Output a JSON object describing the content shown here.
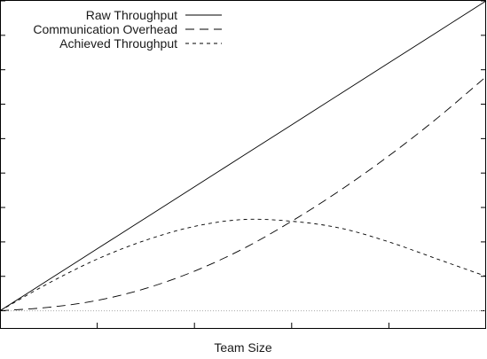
{
  "chart_data": {
    "type": "line",
    "title": "",
    "xlabel": "Team Size",
    "ylabel": "",
    "xlim": [
      0,
      1
    ],
    "ylim": [
      -0.05,
      0.9
    ],
    "grid": false,
    "legend_position": "top-left",
    "series": [
      {
        "name": "Raw Throughput",
        "dash": "solid",
        "x": [
          0,
          0.1,
          0.2,
          0.3,
          0.4,
          0.5,
          0.6,
          0.7,
          0.8,
          0.9,
          1.0
        ],
        "y": [
          0,
          0.09,
          0.18,
          0.27,
          0.36,
          0.45,
          0.54,
          0.63,
          0.72,
          0.81,
          0.9
        ]
      },
      {
        "name": "Communication Overhead",
        "dash": "long-dash",
        "x": [
          0,
          0.1,
          0.2,
          0.3,
          0.4,
          0.5,
          0.6,
          0.7,
          0.8,
          0.9,
          1.0
        ],
        "y": [
          0,
          0.01,
          0.03,
          0.065,
          0.115,
          0.18,
          0.26,
          0.35,
          0.45,
          0.56,
          0.68
        ]
      },
      {
        "name": "Achieved Throughput",
        "dash": "short-dash",
        "x": [
          0,
          0.1,
          0.2,
          0.3,
          0.4,
          0.5,
          0.6,
          0.7,
          0.8,
          0.9,
          1.0
        ],
        "y": [
          0,
          0.08,
          0.15,
          0.205,
          0.245,
          0.265,
          0.26,
          0.24,
          0.2,
          0.15,
          0.1
        ]
      }
    ],
    "baseline": {
      "y": 0,
      "style": "dotted"
    },
    "xticks": [
      0.2,
      0.4,
      0.6,
      0.8
    ],
    "yticks": [
      0,
      0.1,
      0.2,
      0.3,
      0.4,
      0.5,
      0.6,
      0.7,
      0.8,
      0.9
    ]
  }
}
